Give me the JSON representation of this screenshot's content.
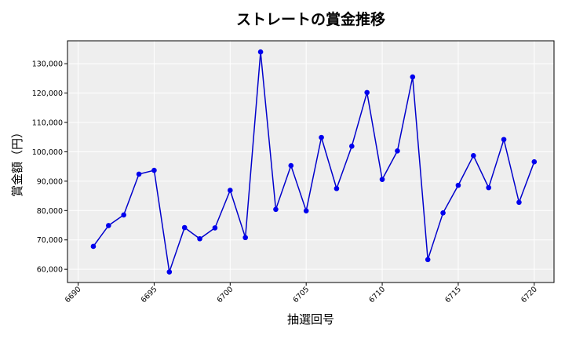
{
  "chart_data": {
    "type": "line",
    "title": "ストレートの賞金推移",
    "xlabel": "抽選回号",
    "ylabel": "賞金額（円）",
    "xlim": [
      6689.3,
      6721.3
    ],
    "ylim": [
      55500,
      137800
    ],
    "x_ticks": [
      6690,
      6695,
      6700,
      6705,
      6710,
      6715,
      6720
    ],
    "y_ticks": [
      60000,
      70000,
      80000,
      90000,
      100000,
      110000,
      120000,
      130000
    ],
    "y_tick_labels": [
      "60,000",
      "70,000",
      "80,000",
      "90,000",
      "100,000",
      "110,000",
      "120,000",
      "130,000"
    ],
    "grid": true,
    "series": [
      {
        "color": "#0000cc",
        "marker_color": "#0000ee",
        "x": [
          6691,
          6692,
          6693,
          6694,
          6695,
          6696,
          6697,
          6698,
          6699,
          6700,
          6701,
          6702,
          6703,
          6704,
          6705,
          6706,
          6707,
          6708,
          6709,
          6710,
          6711,
          6712,
          6713,
          6714,
          6715,
          6716,
          6717,
          6718,
          6719,
          6720
        ],
        "values": [
          67800,
          74900,
          78500,
          92400,
          93700,
          59100,
          74200,
          70400,
          74100,
          86900,
          70800,
          134000,
          80400,
          95300,
          79900,
          104900,
          87500,
          101900,
          120200,
          90600,
          100300,
          125500,
          63300,
          79200,
          88600,
          98700,
          87800,
          104200,
          82800,
          96600
        ]
      }
    ]
  },
  "colors": {
    "plot_background": "#eeeeee",
    "grid": "#ffffff"
  }
}
